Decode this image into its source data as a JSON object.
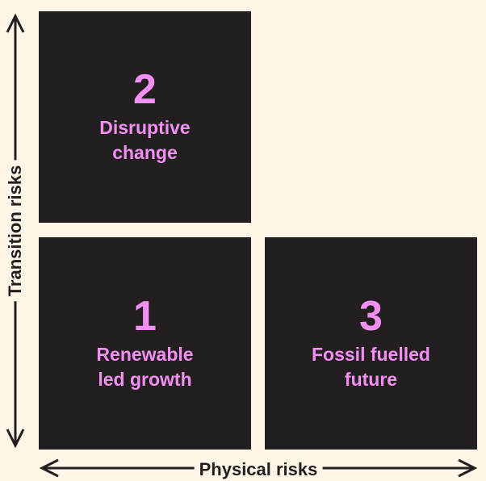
{
  "colors": {
    "background": "#fdf5e6",
    "box": "#231f20",
    "accent": "#f28ff2",
    "axis": "#231f20"
  },
  "axes": {
    "y_label": "Transition risks",
    "x_label": "Physical risks"
  },
  "scenarios": {
    "s2": {
      "number": "2",
      "label": "Disruptive\nchange"
    },
    "s1": {
      "number": "1",
      "label": "Renewable\nled growth"
    },
    "s3": {
      "number": "3",
      "label": "Fossil fuelled\nfuture"
    }
  }
}
